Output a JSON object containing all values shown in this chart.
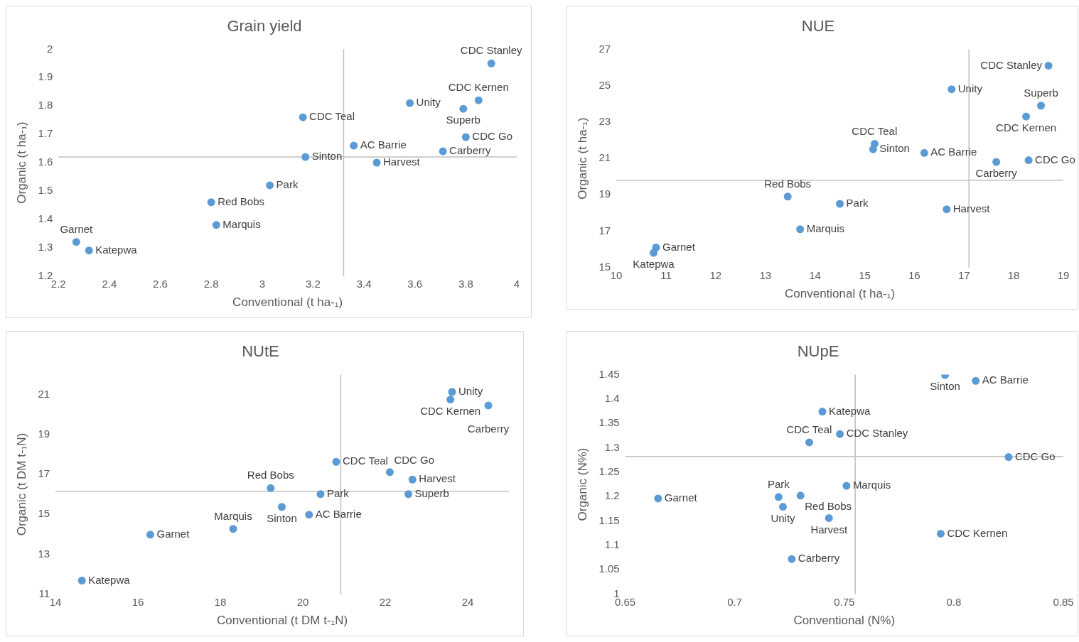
{
  "chart_data": [
    {
      "type": "scatter",
      "title": "Grain yield",
      "xlabel": "Conventional (t ha-₁)",
      "ylabel": "Organic (t ha-₁)",
      "color": "#5b9bd5",
      "marker": "circle",
      "x": [
        3.9,
        3.85,
        3.58,
        3.79,
        3.16,
        3.8,
        3.36,
        3.71,
        3.17,
        3.45,
        3.03,
        2.8,
        2.82,
        2.27,
        2.32
      ],
      "values": [
        1.95,
        1.82,
        1.81,
        1.79,
        1.76,
        1.69,
        1.66,
        1.64,
        1.62,
        1.6,
        1.52,
        1.46,
        1.38,
        1.32,
        1.29
      ],
      "xlim": [
        2.2,
        4
      ],
      "ylim": [
        1.2,
        2
      ],
      "xticks": [
        2.2,
        2.4,
        2.6,
        2.8,
        3,
        3.2,
        3.4,
        3.6,
        3.8,
        4
      ],
      "yticks": [
        1.2,
        1.3,
        1.4,
        1.5,
        1.6,
        1.7,
        1.8,
        1.9,
        2
      ],
      "ref_lines": [
        {
          "axis": "x",
          "value": 3.32,
          "color": "#bfbfbf"
        },
        {
          "axis": "y",
          "value": 1.62,
          "color": "#bfbfbf"
        }
      ],
      "annotations": [
        {
          "text": "CDC Stanley",
          "x": 3.9,
          "y": 1.95
        },
        {
          "text": "CDC Kernen",
          "x": 3.85,
          "y": 1.82
        },
        {
          "text": "Unity",
          "x": 3.58,
          "y": 1.81
        },
        {
          "text": "Superb",
          "x": 3.79,
          "y": 1.79
        },
        {
          "text": "CDC Teal",
          "x": 3.16,
          "y": 1.76
        },
        {
          "text": "CDC Go",
          "x": 3.8,
          "y": 1.69
        },
        {
          "text": "AC Barrie",
          "x": 3.36,
          "y": 1.66
        },
        {
          "text": "Carberry",
          "x": 3.71,
          "y": 1.64
        },
        {
          "text": "Sinton",
          "x": 3.17,
          "y": 1.62
        },
        {
          "text": "Harvest",
          "x": 3.45,
          "y": 1.6
        },
        {
          "text": "Park",
          "x": 3.03,
          "y": 1.52
        },
        {
          "text": "Red Bobs",
          "x": 2.8,
          "y": 1.46
        },
        {
          "text": "Marquis",
          "x": 2.82,
          "y": 1.38
        },
        {
          "text": "Garnet",
          "x": 2.27,
          "y": 1.32
        },
        {
          "text": "Katepwa",
          "x": 2.32,
          "y": 1.29
        }
      ]
    },
    {
      "type": "scatter",
      "title": "NUE",
      "xlabel": "Conventional (t ha-₁)",
      "ylabel": "Organic (t ha-₁)",
      "color": "#5b9bd5",
      "marker": "circle",
      "x": [
        18.7,
        16.75,
        18.55,
        18.25,
        15.2,
        15.17,
        16.2,
        18.3,
        17.65,
        13.45,
        14.5,
        16.65,
        13.7,
        10.8,
        10.75
      ],
      "values": [
        26.1,
        24.8,
        23.9,
        23.3,
        21.8,
        21.5,
        21.3,
        20.9,
        20.8,
        18.9,
        18.5,
        18.2,
        17.1,
        16.1,
        15.8
      ],
      "xlim": [
        10,
        19
      ],
      "ylim": [
        15,
        27
      ],
      "xticks": [
        10,
        11,
        12,
        13,
        14,
        15,
        16,
        17,
        18,
        19
      ],
      "yticks": [
        15,
        17,
        19,
        21,
        23,
        25,
        27
      ],
      "ref_lines": [
        {
          "axis": "x",
          "value": 17.1,
          "color": "#bfbfbf"
        },
        {
          "axis": "y",
          "value": 19.8,
          "color": "#bfbfbf"
        }
      ],
      "annotations": [
        {
          "text": "CDC Stanley",
          "x": 18.7,
          "y": 26.1
        },
        {
          "text": "Unity",
          "x": 16.75,
          "y": 24.8
        },
        {
          "text": "Superb",
          "x": 18.55,
          "y": 23.9
        },
        {
          "text": "CDC Kernen",
          "x": 18.25,
          "y": 23.3
        },
        {
          "text": "CDC Teal",
          "x": 15.2,
          "y": 21.8
        },
        {
          "text": "Sinton",
          "x": 15.17,
          "y": 21.5
        },
        {
          "text": "AC Barrie",
          "x": 16.2,
          "y": 21.3
        },
        {
          "text": "CDC Go",
          "x": 18.3,
          "y": 20.9
        },
        {
          "text": "Carberry",
          "x": 17.65,
          "y": 20.8
        },
        {
          "text": "Red Bobs",
          "x": 13.45,
          "y": 18.9
        },
        {
          "text": "Park",
          "x": 14.5,
          "y": 18.5
        },
        {
          "text": "Harvest",
          "x": 16.65,
          "y": 18.2
        },
        {
          "text": "Marquis",
          "x": 13.7,
          "y": 17.1
        },
        {
          "text": "Garnet",
          "x": 10.8,
          "y": 16.1
        },
        {
          "text": "Katepwa",
          "x": 10.75,
          "y": 15.8
        }
      ]
    },
    {
      "type": "scatter",
      "title": "NUtE",
      "xlabel": "Conventional (t DM t-₁N)",
      "ylabel": "Organic (t DM t-₁N)",
      "color": "#5b9bd5",
      "marker": "circle",
      "x": [
        23.62,
        23.58,
        24.5,
        20.81,
        22.11,
        22.66,
        19.22,
        20.43,
        22.56,
        19.49,
        20.15,
        16.3,
        18.31,
        14.64
      ],
      "values": [
        21.13,
        20.75,
        20.45,
        17.63,
        17.11,
        16.74,
        16.31,
        16.01,
        16.01,
        15.37,
        14.98,
        13.98,
        14.27,
        11.68
      ],
      "xlim": [
        14,
        25
      ],
      "ylim": [
        11,
        22
      ],
      "xticks": [
        14,
        16,
        18,
        20,
        22,
        24
      ],
      "yticks": [
        11,
        13,
        15,
        17,
        19,
        21
      ],
      "ref_lines": [
        {
          "axis": "x",
          "value": 20.92,
          "color": "#bfbfbf"
        },
        {
          "axis": "y",
          "value": 16.15,
          "color": "#bfbfbf"
        }
      ],
      "annotations": [
        {
          "text": "Unity",
          "x": 23.62,
          "y": 21.13
        },
        {
          "text": "CDC Kernen",
          "x": 23.58,
          "y": 20.75
        },
        {
          "text": "Carberry",
          "x": 24.5,
          "y": 20.45
        },
        {
          "text": "CDC Teal",
          "x": 20.81,
          "y": 17.63
        },
        {
          "text": "CDC Go",
          "x": 22.11,
          "y": 17.11
        },
        {
          "text": "Harvest",
          "x": 22.66,
          "y": 16.74
        },
        {
          "text": "Red Bobs",
          "x": 19.22,
          "y": 16.31
        },
        {
          "text": "Park",
          "x": 20.43,
          "y": 16.01
        },
        {
          "text": "Superb",
          "x": 22.56,
          "y": 16.01
        },
        {
          "text": "Sinton",
          "x": 19.49,
          "y": 15.37
        },
        {
          "text": "AC Barrie",
          "x": 20.15,
          "y": 14.98
        },
        {
          "text": "Garnet",
          "x": 16.3,
          "y": 13.98
        },
        {
          "text": "Marquis",
          "x": 18.31,
          "y": 14.27
        },
        {
          "text": "Katepwa",
          "x": 14.64,
          "y": 11.68
        }
      ]
    },
    {
      "type": "scatter",
      "title": "NUpE",
      "xlabel": "Conventional (N%)",
      "ylabel": "Organic (N%)",
      "color": "#5b9bd5",
      "marker": "circle",
      "x": [
        0.796,
        0.81,
        0.74,
        0.748,
        0.734,
        0.825,
        0.665,
        0.72,
        0.73,
        0.751,
        0.722,
        0.743,
        0.794,
        0.726
      ],
      "values": [
        1.449,
        1.437,
        1.374,
        1.328,
        1.311,
        1.281,
        1.196,
        1.199,
        1.202,
        1.222,
        1.179,
        1.156,
        1.124,
        1.072
      ],
      "xlim": [
        0.65,
        0.85
      ],
      "ylim": [
        1,
        1.45
      ],
      "xticks": [
        0.65,
        0.7,
        0.75,
        0.8,
        0.85
      ],
      "yticks": [
        1,
        1.05,
        1.1,
        1.15,
        1.2,
        1.25,
        1.3,
        1.35,
        1.4,
        1.45
      ],
      "ref_lines": [
        {
          "axis": "x",
          "value": 0.755,
          "color": "#bfbfbf"
        },
        {
          "axis": "y",
          "value": 1.282,
          "color": "#bfbfbf"
        }
      ],
      "annotations": [
        {
          "text": "Sinton",
          "x": 0.796,
          "y": 1.449
        },
        {
          "text": "AC Barrie",
          "x": 0.81,
          "y": 1.437
        },
        {
          "text": "Katepwa",
          "x": 0.74,
          "y": 1.374
        },
        {
          "text": "CDC Stanley",
          "x": 0.748,
          "y": 1.328
        },
        {
          "text": "CDC Teal",
          "x": 0.734,
          "y": 1.311
        },
        {
          "text": "CDC Go",
          "x": 0.825,
          "y": 1.281
        },
        {
          "text": "Garnet",
          "x": 0.665,
          "y": 1.196
        },
        {
          "text": "Park",
          "x": 0.72,
          "y": 1.199
        },
        {
          "text": "Red Bobs",
          "x": 0.73,
          "y": 1.202
        },
        {
          "text": "Marquis",
          "x": 0.751,
          "y": 1.222
        },
        {
          "text": "Unity",
          "x": 0.722,
          "y": 1.179
        },
        {
          "text": "Harvest",
          "x": 0.743,
          "y": 1.156
        },
        {
          "text": "CDC Kernen",
          "x": 0.794,
          "y": 1.124
        },
        {
          "text": "Carberry",
          "x": 0.726,
          "y": 1.072
        }
      ]
    }
  ]
}
